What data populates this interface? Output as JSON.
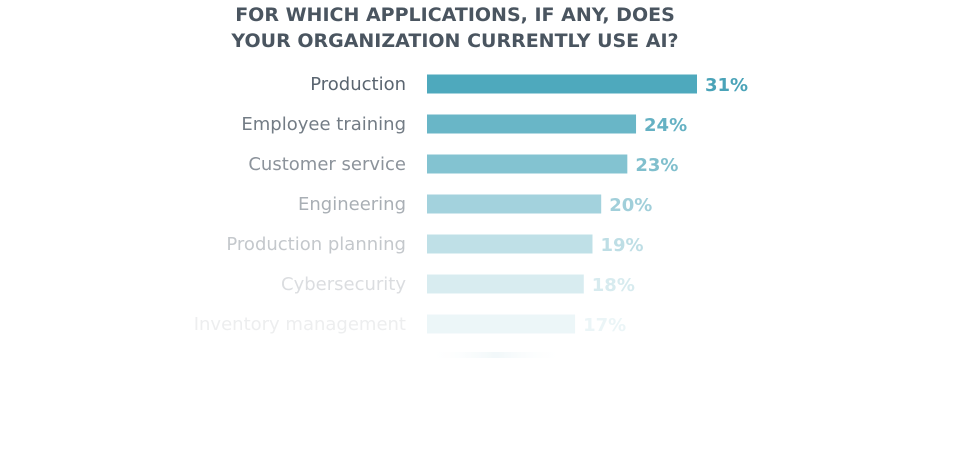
{
  "chart_data": {
    "type": "bar",
    "orientation": "horizontal",
    "title_lines": [
      "FOR WHICH APPLICATIONS, IF ANY, DOES",
      "YOUR ORGANIZATION CURRENTLY USE AI?"
    ],
    "categories": [
      "Production",
      "Employee training",
      "Customer service",
      "Engineering",
      "Production planning",
      "Cybersecurity",
      "Inventory management"
    ],
    "values": [
      31,
      24,
      23,
      20,
      19,
      18,
      17
    ],
    "value_labels": [
      "31%",
      "24%",
      "23%",
      "20%",
      "19%",
      "18%",
      "17%"
    ],
    "value_suffix": "%",
    "grid": false,
    "legend": "none",
    "fade": "rows fade toward white from top to bottom",
    "colors": {
      "bar": "#4ea9bd",
      "value_text": "#4aa3b8",
      "category_text": "#5a6570",
      "title": "#4a5560"
    }
  }
}
